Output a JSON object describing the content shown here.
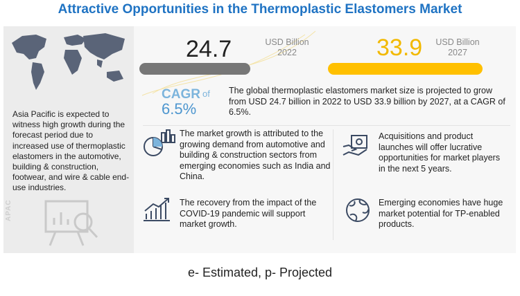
{
  "title": "Attractive Opportunities in the Thermoplastic Elastomers Market",
  "apac": {
    "text": "Asia Pacific is expected to witness high growth during the forecast period due to increased use of thermoplastic elastomers in the automotive, building & construction, footwear, and wire & cable end-use industries.",
    "label": "APAC"
  },
  "market_2022": {
    "value": "24.7",
    "unit": "USD Billion",
    "year": "2022",
    "bar_color": "#777777"
  },
  "market_2027": {
    "value": "33.9",
    "unit": "USD Billion",
    "year": "2027",
    "bar_color": "#ffc000",
    "value_color": "#f2b900"
  },
  "cagr": {
    "label": "CAGR",
    "of": "of",
    "value": "6.5%"
  },
  "summary": "The global thermoplastic elastomers market size is projected to grow from USD 24.7 billion in 2022 to USD 33.9 billion  by 2027, at a CAGR of 6.5%.",
  "points": [
    {
      "icon": "pie-chart-icon",
      "text": "The market growth is attributed to the growing demand from automotive and building & construction sectors from emerging economies such as India and China."
    },
    {
      "icon": "money-icon",
      "text": "Acquisitions and product launches will offer lucrative opportunities for market players in the next 5 years."
    },
    {
      "icon": "growth-chart-icon",
      "text": "The recovery from the impact of the COVID-19 pandemic will support market growth."
    },
    {
      "icon": "globe-icon",
      "text": "Emerging economies have huge market potential for TP-enabled products."
    }
  ],
  "footnote": "e- Estimated, p- Projected",
  "colors": {
    "title": "#1f73c3",
    "cagr": "#4d96cf"
  }
}
